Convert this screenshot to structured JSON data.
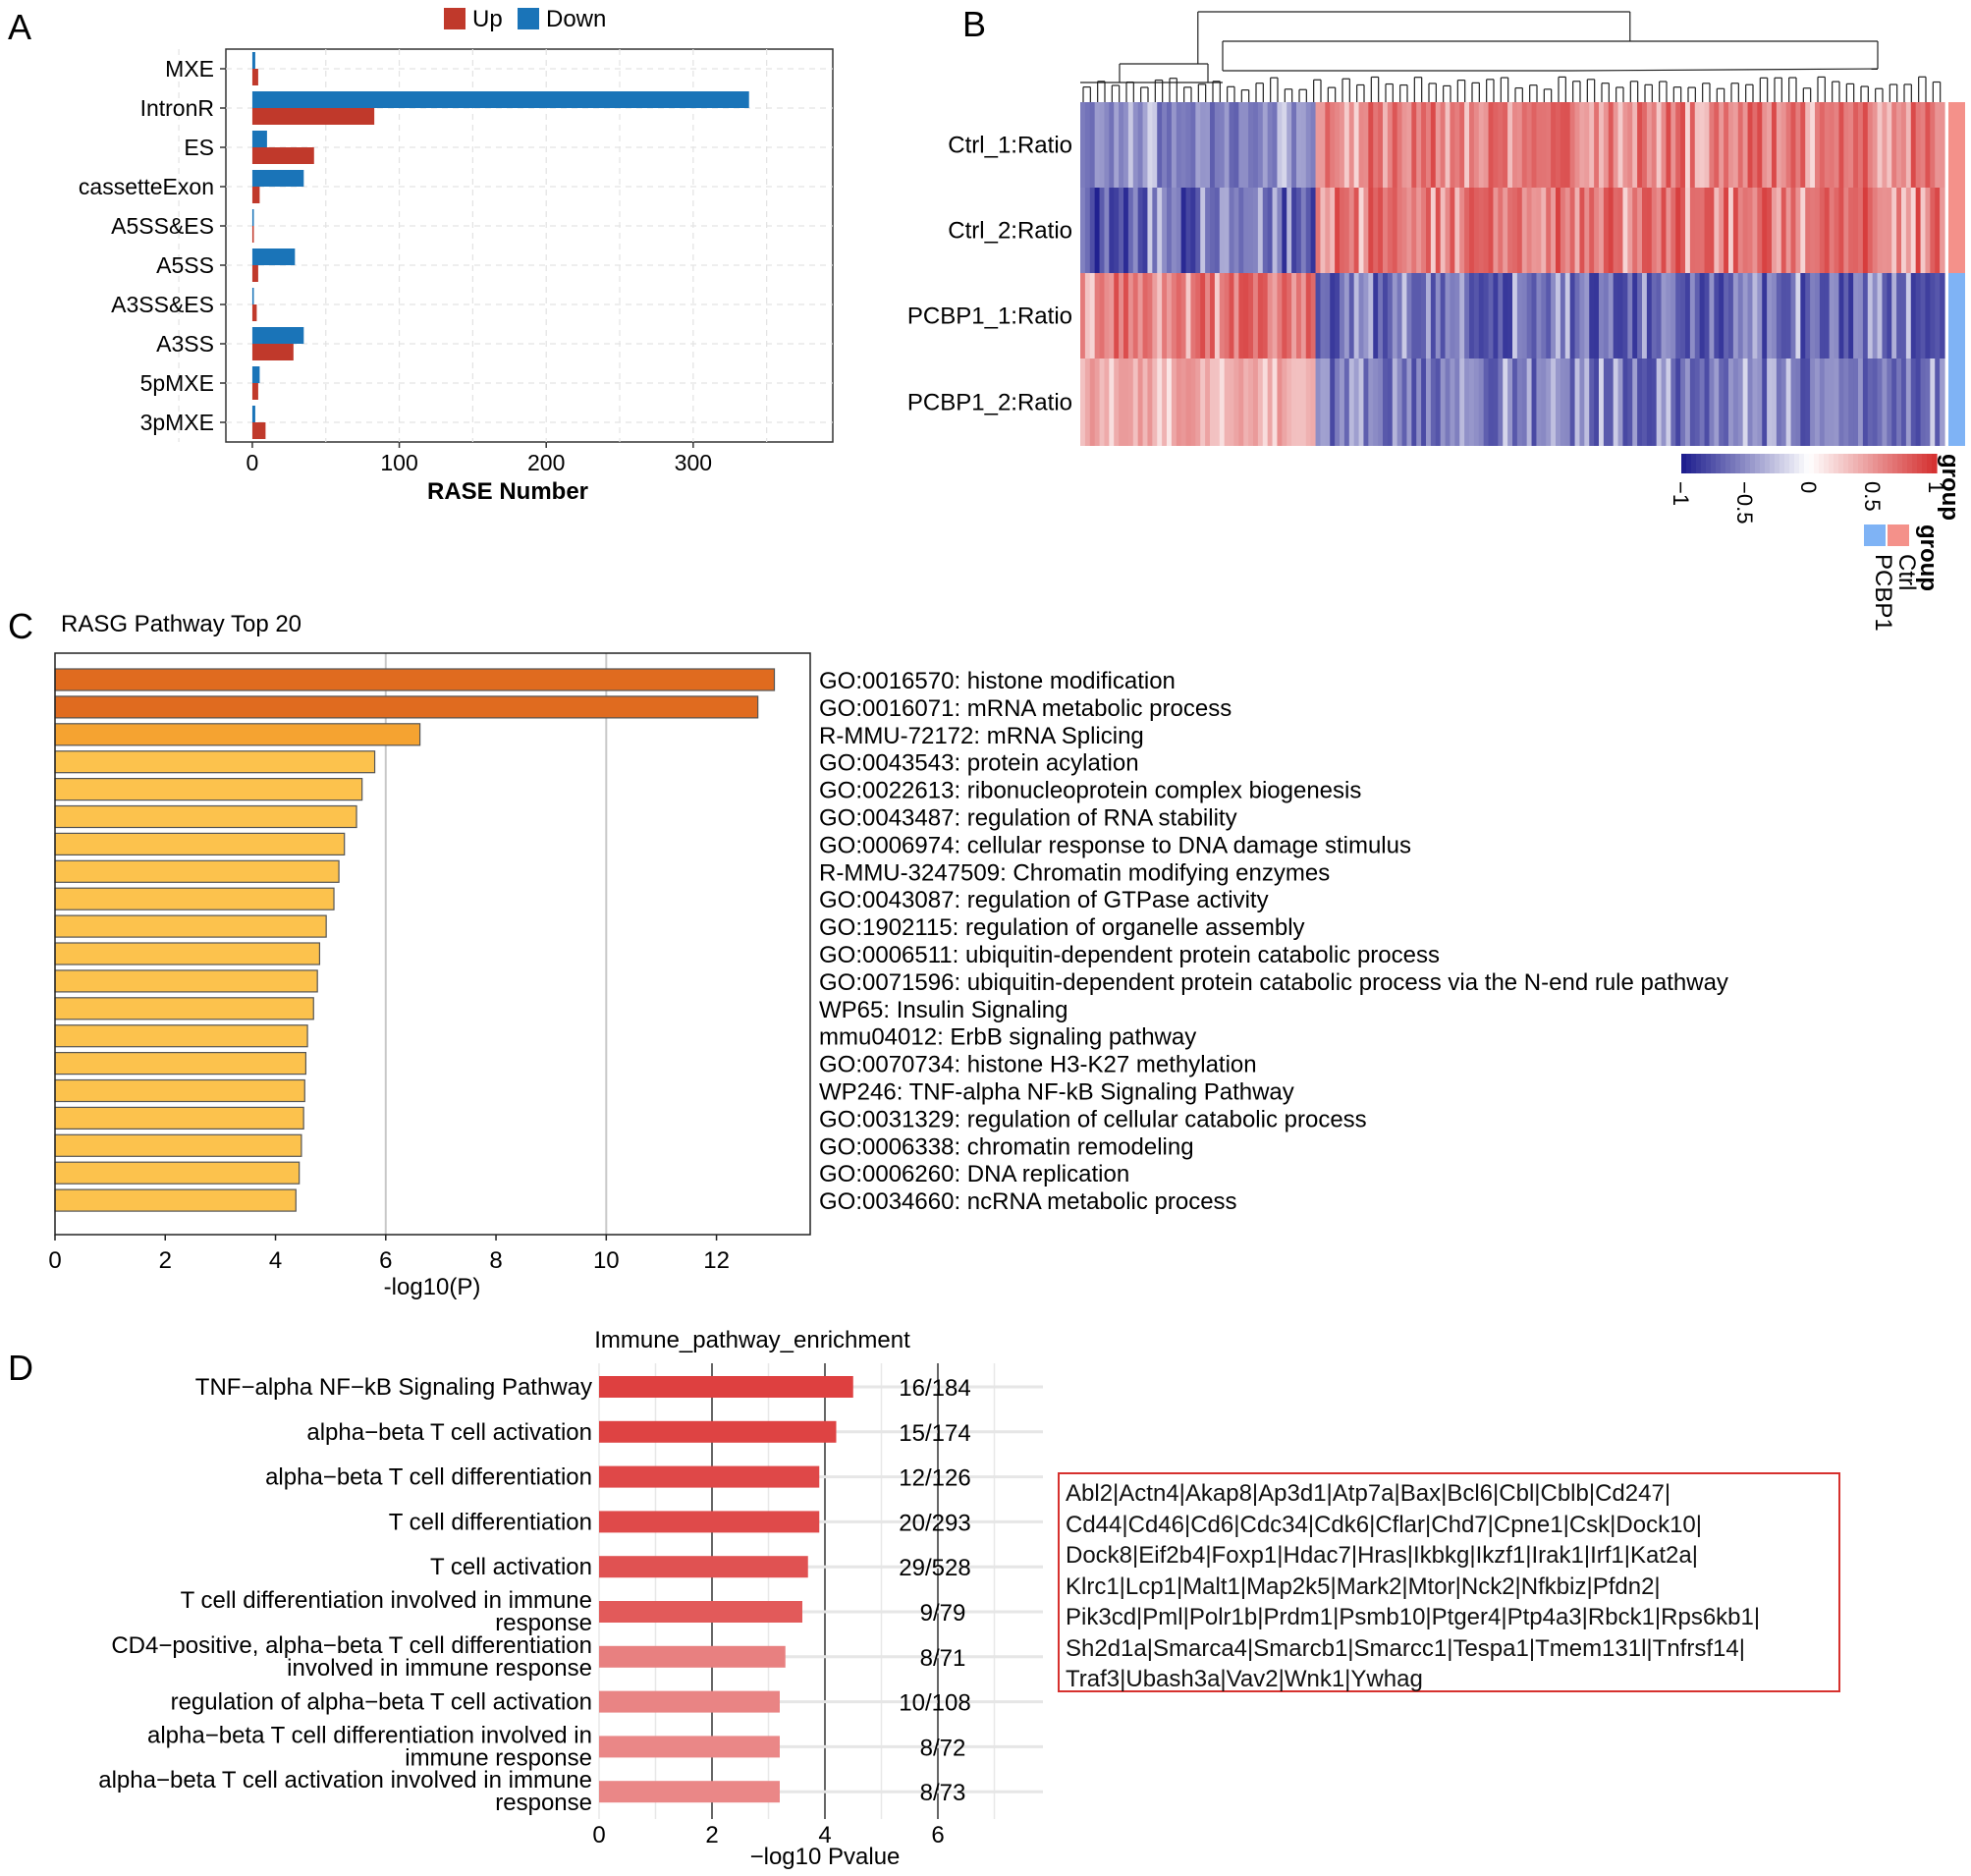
{
  "chart_data": [
    {
      "panel": "A",
      "type": "bar",
      "orientation": "horizontal",
      "xlabel": "RASE Number",
      "xlim": [
        -18,
        395
      ],
      "xticks": [
        0,
        100,
        200,
        300
      ],
      "legend": {
        "position": "top",
        "items": [
          {
            "name": "Up",
            "color": "#c0392b"
          },
          {
            "name": "Down",
            "color": "#1a74b8"
          }
        ]
      },
      "categories": [
        "MXE",
        "IntronR",
        "ES",
        "cassetteExon",
        "A5SS&ES",
        "A5SS",
        "A3SS&ES",
        "A3SS",
        "5pMXE",
        "3pMXE"
      ],
      "series": [
        {
          "name": "Down",
          "color": "#1a74b8",
          "values": [
            2,
            338,
            10,
            35,
            1,
            29,
            1,
            35,
            5,
            2
          ]
        },
        {
          "name": "Up",
          "color": "#c0392b",
          "values": [
            4,
            83,
            42,
            5,
            1,
            4,
            3,
            28,
            4,
            9
          ]
        }
      ],
      "grid": true
    },
    {
      "panel": "B",
      "type": "heatmap",
      "rows": [
        "Ctrl_1:Ratio",
        "Ctrl_2:Ratio",
        "PCBP1_1:Ratio",
        "PCBP1_2:Ratio"
      ],
      "color_scale": {
        "title": "group",
        "min": -1,
        "max": 1,
        "ticks": [
          "1",
          "0.5",
          "0",
          "−0.5",
          "−1"
        ],
        "low": "#1a1a8c",
        "mid": "#ffffff",
        "high": "#d42e2e"
      },
      "annotation": {
        "title": "group",
        "levels": [
          {
            "name": "Ctrl",
            "color": "#f4918a"
          },
          {
            "name": "PCBP1",
            "color": "#7fb3f5"
          }
        ],
        "row_groups": [
          "Ctrl",
          "Ctrl",
          "PCBP1",
          "PCBP1"
        ]
      },
      "column_blocks": [
        {
          "length": 0.27,
          "pattern": [
            -0.7,
            -0.9,
            0.8,
            0.5
          ]
        },
        {
          "length": 0.73,
          "pattern": [
            0.8,
            0.85,
            -0.8,
            -0.75
          ]
        }
      ]
    },
    {
      "panel": "C",
      "type": "bar",
      "orientation": "horizontal",
      "title": "RASG Pathway Top 20",
      "xlabel": "-log10(P)",
      "xlim": [
        0,
        13.7
      ],
      "xticks": [
        0,
        2,
        4,
        6,
        8,
        10,
        12
      ],
      "grid": true,
      "categories": [
        "GO:0016570: histone modification",
        "GO:0016071: mRNA metabolic process",
        "R-MMU-72172: mRNA Splicing",
        "GO:0043543: protein acylation",
        "GO:0022613: ribonucleoprotein complex biogenesis",
        "GO:0043487: regulation of RNA stability",
        "GO:0006974: cellular response to DNA damage stimulus",
        "R-MMU-3247509: Chromatin modifying enzymes",
        "GO:0043087: regulation of GTPase activity",
        "GO:1902115: regulation of organelle assembly",
        "GO:0006511: ubiquitin-dependent protein catabolic process",
        "GO:0071596: ubiquitin-dependent protein catabolic process via the N-end rule pathway",
        "WP65: Insulin Signaling",
        "mmu04012: ErbB signaling pathway",
        "GO:0070734: histone H3-K27 methylation",
        "WP246: TNF-alpha NF-kB Signaling Pathway",
        "GO:0031329: regulation of cellular catabolic process",
        "GO:0006338: chromatin remodeling",
        "GO:0006260: DNA replication",
        "GO:0034660: ncRNA metabolic process"
      ],
      "values": [
        13.05,
        12.75,
        6.62,
        5.8,
        5.57,
        5.47,
        5.25,
        5.15,
        5.06,
        4.92,
        4.8,
        4.76,
        4.69,
        4.58,
        4.55,
        4.53,
        4.51,
        4.47,
        4.43,
        4.37
      ],
      "colors": [
        "#e06b1f",
        "#e06b1f",
        "#f5a331",
        "#fcc24d",
        "#fcc24d",
        "#fcc24d",
        "#fcc24d",
        "#fcc24d",
        "#fcc24d",
        "#fcc24d",
        "#fcc24d",
        "#fcc24d",
        "#fcc24d",
        "#fcc24d",
        "#fcc24d",
        "#fcc24d",
        "#fcc24d",
        "#fcc24d",
        "#fcc24d",
        "#fcc24d"
      ]
    },
    {
      "panel": "D",
      "type": "bar",
      "orientation": "horizontal",
      "title": "Immune_pathway_enrichment",
      "xlabel": "−log10 Pvalue",
      "xlim": [
        0,
        7.6
      ],
      "xticks": [
        0,
        2,
        4,
        6
      ],
      "grid": true,
      "categories": [
        [
          "TNF−alpha NF−kB Signaling Pathway"
        ],
        [
          "alpha−beta T cell activation"
        ],
        [
          "alpha−beta T cell differentiation"
        ],
        [
          "T cell differentiation"
        ],
        [
          "T cell activation"
        ],
        [
          "T cell differentiation involved in immune",
          "response"
        ],
        [
          "CD4−positive, alpha−beta T cell differentiation",
          "involved in immune response"
        ],
        [
          "regulation of alpha−beta T cell activation"
        ],
        [
          "alpha−beta T cell differentiation involved in",
          "immune response"
        ],
        [
          "alpha−beta T cell activation involved in immune",
          "response"
        ]
      ],
      "values": [
        4.5,
        4.2,
        3.9,
        3.9,
        3.7,
        3.6,
        3.3,
        3.2,
        3.2,
        3.2
      ],
      "labels": [
        "16/184",
        "15/174",
        "12/126",
        "20/293",
        "29/528",
        "9/79",
        "8/71",
        "10/108",
        "8/72",
        "8/73"
      ],
      "colors": [
        "#de4040",
        "#de4343",
        "#df4848",
        "#df4a4a",
        "#e05252",
        "#e25a5a",
        "#e88080",
        "#e98484",
        "#ea8787",
        "#ea8787"
      ],
      "genes": [
        "Abl2|Actn4|Akap8|Ap3d1|Atp7a|Bax|Bcl6|Cbl|Cblb|Cd247|",
        "Cd44|Cd46|Cd6|Cdc34|Cdk6|Cflar|Chd7|Cpne1|Csk|Dock10|",
        "Dock8|Eif2b4|Foxp1|Hdac7|Hras|Ikbkg|Ikzf1|Irak1|Irf1|Kat2a|",
        "Klrc1|Lcp1|Malt1|Map2k5|Mark2|Mtor|Nck2|Nfkbiz|Pfdn2|",
        "Pik3cd|Pml|Polr1b|Prdm1|Psmb10|Ptger4|Ptp4a3|Rbck1|Rps6kb1|",
        "Sh2d1a|Smarca4|Smarcb1|Smarcc1|Tespa1|Tmem131l|Tnfrsf14|",
        "Traf3|Ubash3a|Vav2|Wnk1|Ywhag"
      ]
    }
  ],
  "panel_labels": [
    "A",
    "B",
    "C",
    "D"
  ]
}
